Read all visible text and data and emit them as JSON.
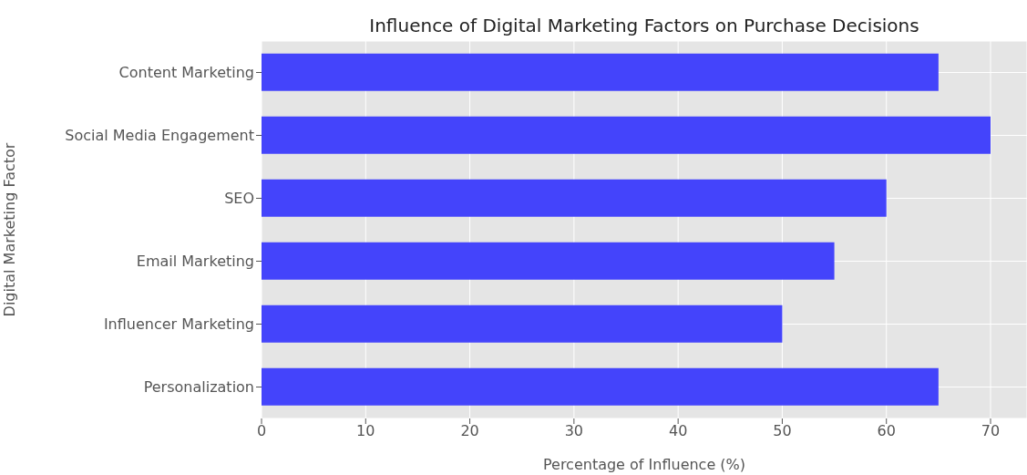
{
  "chart_data": {
    "type": "bar",
    "orientation": "horizontal",
    "title": "Influence of Digital Marketing Factors on Purchase Decisions",
    "xlabel": "Percentage of Influence (%)",
    "ylabel": "Digital Marketing Factor",
    "categories": [
      "Content Marketing",
      "Social Media Engagement",
      "SEO",
      "Email Marketing",
      "Influencer Marketing",
      "Personalization"
    ],
    "values": [
      65,
      70,
      60,
      55,
      50,
      65
    ],
    "color": "#4444fb",
    "xlim": [
      0,
      73.5
    ],
    "xticks": [
      0,
      10,
      20,
      30,
      40,
      50,
      60,
      70
    ],
    "grid": true
  }
}
